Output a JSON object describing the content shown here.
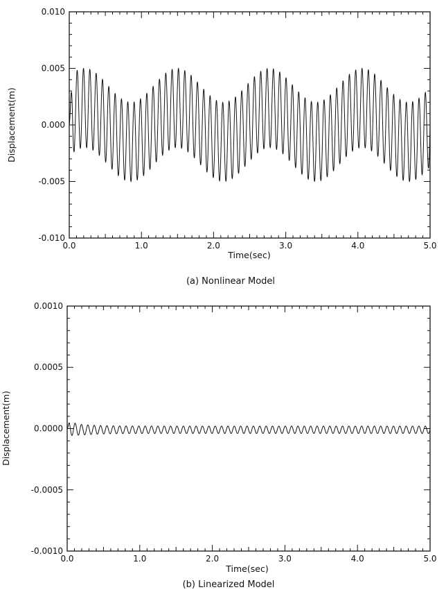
{
  "chart_data": [
    {
      "type": "line",
      "caption": "(a) Nonlinear Model",
      "xlabel": "Time(sec)",
      "ylabel": "Displacement(m)",
      "xlim": [
        0.0,
        5.0
      ],
      "ylim": [
        -0.01,
        0.01
      ],
      "x_tick_labels": [
        "0.0",
        "1.0",
        "2.0",
        "3.0",
        "4.0",
        "5.0"
      ],
      "y_tick_labels": [
        "0.010",
        "0.005",
        "0.000",
        "-0.005",
        "-0.010"
      ],
      "grid": false,
      "series": [
        {
          "signal": "beat",
          "carrier_frequency_hz": 11.4,
          "carrier_amplitude": 0.0035,
          "envelope_frequency_hz": 0.78,
          "envelope_amplitude": 0.0015,
          "peak_abs": 0.005,
          "sampled_points": [
            {
              "x": 0.0,
              "y": 0.0
            },
            {
              "x": 0.1,
              "y": 0.005
            },
            {
              "x": 0.65,
              "y": -0.005
            },
            {
              "x": 1.3,
              "y": 0.005
            },
            {
              "x": 1.95,
              "y": -0.005
            },
            {
              "x": 2.6,
              "y": 0.005
            },
            {
              "x": 3.25,
              "y": -0.005
            },
            {
              "x": 3.9,
              "y": 0.005
            },
            {
              "x": 4.55,
              "y": -0.005
            },
            {
              "x": 5.0,
              "y": 0.0015
            }
          ]
        }
      ]
    },
    {
      "type": "line",
      "caption": "(b) Linearized Model",
      "xlabel": "Time(sec)",
      "ylabel": "Displacement(m)",
      "xlim": [
        0.0,
        5.0
      ],
      "ylim": [
        -0.001,
        0.001
      ],
      "x_tick_labels": [
        "0.0",
        "1.0",
        "2.0",
        "3.0",
        "4.0",
        "5.0"
      ],
      "y_tick_labels": [
        "0.0010",
        "0.0005",
        "0.0000",
        "-0.0005",
        "-0.0010"
      ],
      "grid": false,
      "series": [
        {
          "signal": "decaying oscillation",
          "carrier_frequency_hz": 11.4,
          "initial_amplitude": 6e-05,
          "steady_amplitude": 3e-05,
          "offset": -1e-05,
          "sampled_points": [
            {
              "x": 0.0,
              "y": 0.0
            },
            {
              "x": 0.1,
              "y": 5e-05
            },
            {
              "x": 0.5,
              "y": 3e-05
            },
            {
              "x": 1.0,
              "y": 2e-05
            },
            {
              "x": 2.0,
              "y": 2e-05
            },
            {
              "x": 3.0,
              "y": 2e-05
            },
            {
              "x": 4.0,
              "y": 2e-05
            },
            {
              "x": 5.0,
              "y": 0.0
            }
          ]
        }
      ]
    }
  ]
}
